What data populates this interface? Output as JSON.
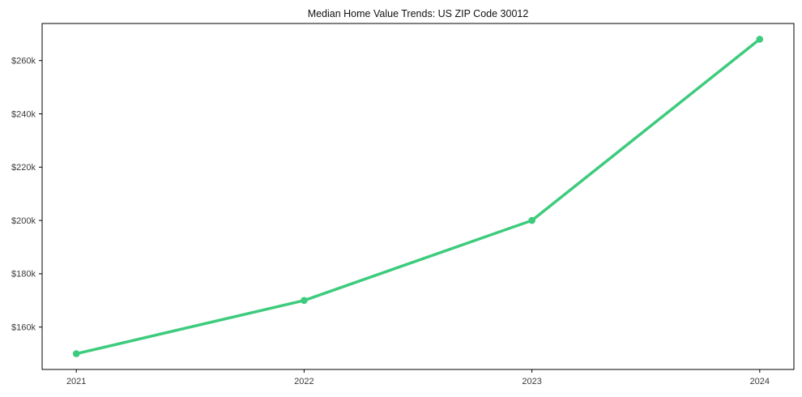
{
  "chart_data": {
    "type": "line",
    "title": "Median Home Value Trends: US ZIP Code 30012",
    "categories": [
      "2021",
      "2022",
      "2023",
      "2024"
    ],
    "series": [
      {
        "name": "Median Home Value",
        "values": [
          150000,
          170000,
          200000,
          268000
        ]
      }
    ],
    "xlabel": "",
    "ylabel": "",
    "ylim": [
      144100,
      273900
    ],
    "yticks": [
      {
        "value": 160000,
        "label": "$160k"
      },
      {
        "value": 180000,
        "label": "$180k"
      },
      {
        "value": 200000,
        "label": "$200k"
      },
      {
        "value": 220000,
        "label": "$220k"
      },
      {
        "value": 240000,
        "label": "$240k"
      },
      {
        "value": 260000,
        "label": "$260k"
      }
    ],
    "grid": false,
    "legend_position": "none",
    "line_color": "#3dcb7d",
    "marker": "circle",
    "axis_color": "#000000",
    "tick_label_color": "#3a3a3a",
    "title_color": "#111111",
    "background": "#ffffff"
  }
}
